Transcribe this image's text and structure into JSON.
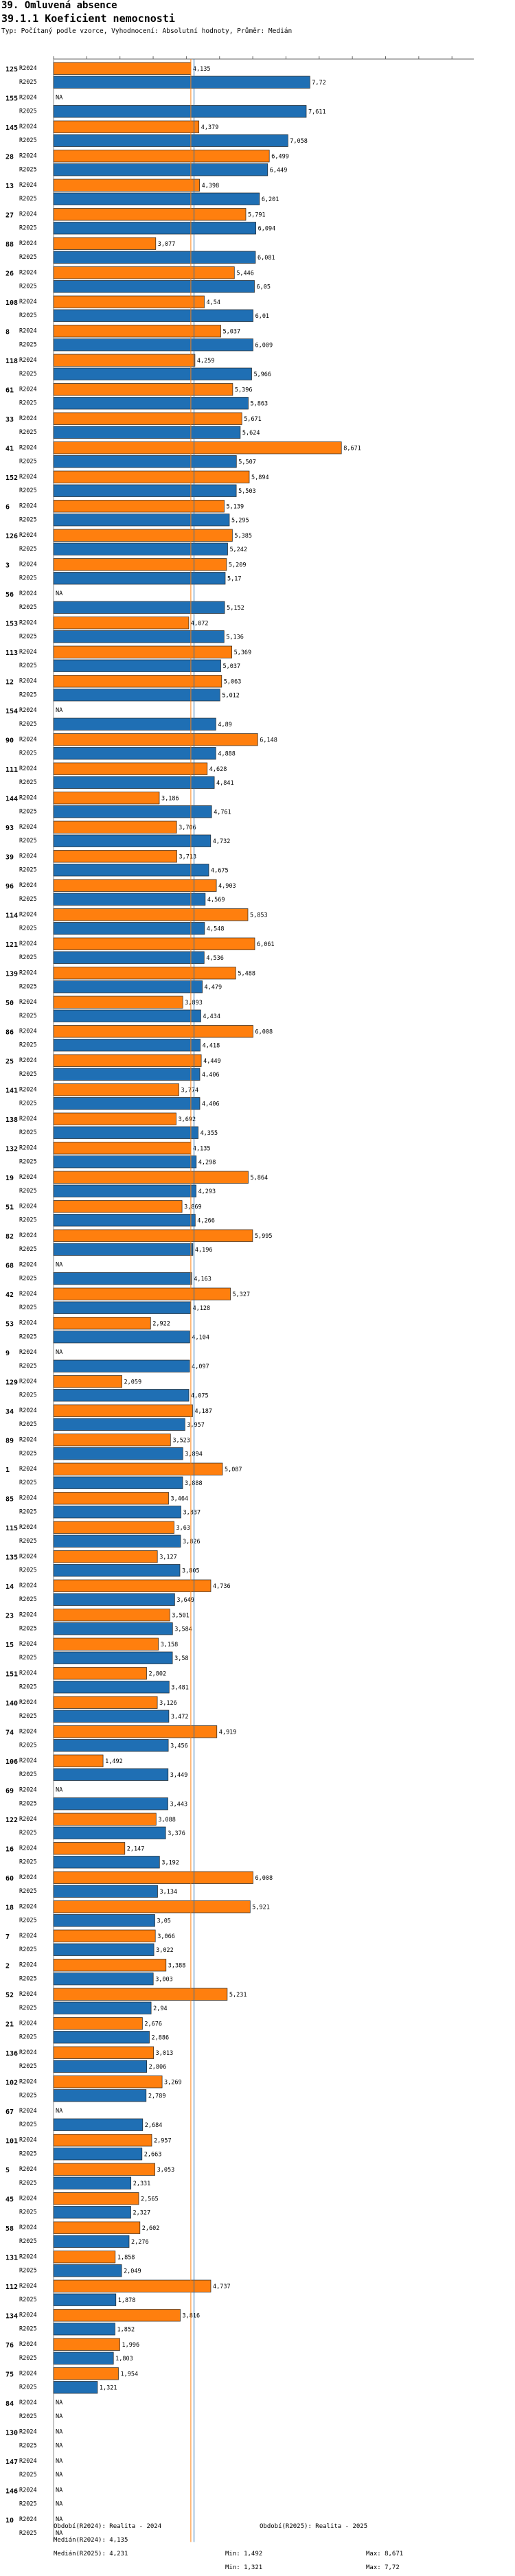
{
  "header": {
    "title1": "39. Omluvená absence",
    "title2": "39.1.1 Koeficient nemocnosti",
    "subtitle": "Typ: Počítaný podle vzorce, Vyhodnocení: Absolutní hodnoty, Průměr: Medián"
  },
  "colors": {
    "r2024": "#ff7f0e",
    "r2025": "#1f6fb4"
  },
  "chart_data": {
    "type": "bar",
    "orientation": "horizontal",
    "series_names": [
      "R2024",
      "R2025"
    ],
    "xlim": [
      0,
      10
    ],
    "median_r2024": 4.135,
    "median_r2025": 4.231,
    "groups": [
      {
        "id": "125",
        "r2024": 4.135,
        "r2025": 7.72
      },
      {
        "id": "155",
        "r2024": null,
        "r2025": 7.611
      },
      {
        "id": "145",
        "r2024": 4.379,
        "r2025": 7.058
      },
      {
        "id": "28",
        "r2024": 6.499,
        "r2025": 6.449
      },
      {
        "id": "13",
        "r2024": 4.398,
        "r2025": 6.201
      },
      {
        "id": "27",
        "r2024": 5.791,
        "r2025": 6.094
      },
      {
        "id": "88",
        "r2024": 3.077,
        "r2025": 6.081
      },
      {
        "id": "26",
        "r2024": 5.446,
        "r2025": 6.05
      },
      {
        "id": "108",
        "r2024": 4.54,
        "r2025": 6.01
      },
      {
        "id": "8",
        "r2024": 5.037,
        "r2025": 6.009
      },
      {
        "id": "118",
        "r2024": 4.259,
        "r2025": 5.966
      },
      {
        "id": "61",
        "r2024": 5.396,
        "r2025": 5.863
      },
      {
        "id": "33",
        "r2024": 5.671,
        "r2025": 5.624
      },
      {
        "id": "41",
        "r2024": 8.671,
        "r2025": 5.507
      },
      {
        "id": "152",
        "r2024": 5.894,
        "r2025": 5.503
      },
      {
        "id": "6",
        "r2024": 5.139,
        "r2025": 5.295
      },
      {
        "id": "126",
        "r2024": 5.385,
        "r2025": 5.242
      },
      {
        "id": "3",
        "r2024": 5.209,
        "r2025": 5.17
      },
      {
        "id": "56",
        "r2024": null,
        "r2025": 5.152
      },
      {
        "id": "153",
        "r2024": 4.072,
        "r2025": 5.136
      },
      {
        "id": "113",
        "r2024": 5.369,
        "r2025": 5.037
      },
      {
        "id": "12",
        "r2024": 5.063,
        "r2025": 5.012
      },
      {
        "id": "154",
        "r2024": null,
        "r2025": 4.89
      },
      {
        "id": "90",
        "r2024": 6.148,
        "r2025": 4.888
      },
      {
        "id": "111",
        "r2024": 4.628,
        "r2025": 4.841
      },
      {
        "id": "144",
        "r2024": 3.186,
        "r2025": 4.761
      },
      {
        "id": "93",
        "r2024": 3.706,
        "r2025": 4.732
      },
      {
        "id": "39",
        "r2024": 3.713,
        "r2025": 4.675
      },
      {
        "id": "96",
        "r2024": 4.903,
        "r2025": 4.569
      },
      {
        "id": "114",
        "r2024": 5.853,
        "r2025": 4.548
      },
      {
        "id": "121",
        "r2024": 6.061,
        "r2025": 4.536
      },
      {
        "id": "139",
        "r2024": 5.488,
        "r2025": 4.479
      },
      {
        "id": "50",
        "r2024": 3.893,
        "r2025": 4.434
      },
      {
        "id": "86",
        "r2024": 6.008,
        "r2025": 4.418
      },
      {
        "id": "25",
        "r2024": 4.449,
        "r2025": 4.406
      },
      {
        "id": "141",
        "r2024": 3.774,
        "r2025": 4.406
      },
      {
        "id": "138",
        "r2024": 3.692,
        "r2025": 4.355
      },
      {
        "id": "132",
        "r2024": 4.135,
        "r2025": 4.298
      },
      {
        "id": "19",
        "r2024": 5.864,
        "r2025": 4.293
      },
      {
        "id": "51",
        "r2024": 3.869,
        "r2025": 4.266
      },
      {
        "id": "82",
        "r2024": 5.995,
        "r2025": 4.196
      },
      {
        "id": "68",
        "r2024": null,
        "r2025": 4.163
      },
      {
        "id": "42",
        "r2024": 5.327,
        "r2025": 4.128
      },
      {
        "id": "53",
        "r2024": 2.922,
        "r2025": 4.104
      },
      {
        "id": "9",
        "r2024": null,
        "r2025": 4.097
      },
      {
        "id": "129",
        "r2024": 2.059,
        "r2025": 4.075
      },
      {
        "id": "34",
        "r2024": 4.187,
        "r2025": 3.957
      },
      {
        "id": "89",
        "r2024": 3.523,
        "r2025": 3.894
      },
      {
        "id": "1",
        "r2024": 5.087,
        "r2025": 3.888
      },
      {
        "id": "85",
        "r2024": 3.464,
        "r2025": 3.837
      },
      {
        "id": "115",
        "r2024": 3.63,
        "r2025": 3.826
      },
      {
        "id": "135",
        "r2024": 3.127,
        "r2025": 3.805
      },
      {
        "id": "14",
        "r2024": 4.736,
        "r2025": 3.649
      },
      {
        "id": "23",
        "r2024": 3.501,
        "r2025": 3.584
      },
      {
        "id": "15",
        "r2024": 3.158,
        "r2025": 3.58
      },
      {
        "id": "151",
        "r2024": 2.802,
        "r2025": 3.481
      },
      {
        "id": "140",
        "r2024": 3.126,
        "r2025": 3.472
      },
      {
        "id": "74",
        "r2024": 4.919,
        "r2025": 3.456
      },
      {
        "id": "106",
        "r2024": 1.492,
        "r2025": 3.449
      },
      {
        "id": "69",
        "r2024": null,
        "r2025": 3.443
      },
      {
        "id": "122",
        "r2024": 3.088,
        "r2025": 3.376
      },
      {
        "id": "16",
        "r2024": 2.147,
        "r2025": 3.192
      },
      {
        "id": "60",
        "r2024": 6.008,
        "r2025": 3.134
      },
      {
        "id": "18",
        "r2024": 5.921,
        "r2025": 3.05
      },
      {
        "id": "7",
        "r2024": 3.066,
        "r2025": 3.022
      },
      {
        "id": "2",
        "r2024": 3.388,
        "r2025": 3.003
      },
      {
        "id": "52",
        "r2024": 5.231,
        "r2025": 2.94
      },
      {
        "id": "21",
        "r2024": 2.676,
        "r2025": 2.886
      },
      {
        "id": "136",
        "r2024": 3.013,
        "r2025": 2.806
      },
      {
        "id": "102",
        "r2024": 3.269,
        "r2025": 2.789
      },
      {
        "id": "67",
        "r2024": null,
        "r2025": 2.684
      },
      {
        "id": "101",
        "r2024": 2.957,
        "r2025": 2.663
      },
      {
        "id": "5",
        "r2024": 3.053,
        "r2025": 2.331
      },
      {
        "id": "45",
        "r2024": 2.565,
        "r2025": 2.327
      },
      {
        "id": "58",
        "r2024": 2.602,
        "r2025": 2.276
      },
      {
        "id": "131",
        "r2024": 1.858,
        "r2025": 2.049
      },
      {
        "id": "112",
        "r2024": 4.737,
        "r2025": 1.878
      },
      {
        "id": "134",
        "r2024": 3.816,
        "r2025": 1.852
      },
      {
        "id": "76",
        "r2024": 1.996,
        "r2025": 1.803
      },
      {
        "id": "75",
        "r2024": 1.954,
        "r2025": 1.321
      },
      {
        "id": "84",
        "r2024": null,
        "r2025": null
      },
      {
        "id": "130",
        "r2024": null,
        "r2025": null
      },
      {
        "id": "147",
        "r2024": null,
        "r2025": null
      },
      {
        "id": "146",
        "r2024": null,
        "r2025": null
      },
      {
        "id": "10",
        "r2024": null,
        "r2025": null
      }
    ],
    "na_label": "NA"
  },
  "footer": {
    "obdobi2024": "Období(R2024): Realita - 2024",
    "obdobi2025": "Období(R2025): Realita - 2025",
    "median2024": "Medián(R2024): 4,135",
    "median2025": "Medián(R2025): 4,231",
    "min2024": "Min: 1,492",
    "min2025": "Min: 1,321",
    "max2024": "Max: 8,671",
    "max2025": "Max: 7,72"
  }
}
